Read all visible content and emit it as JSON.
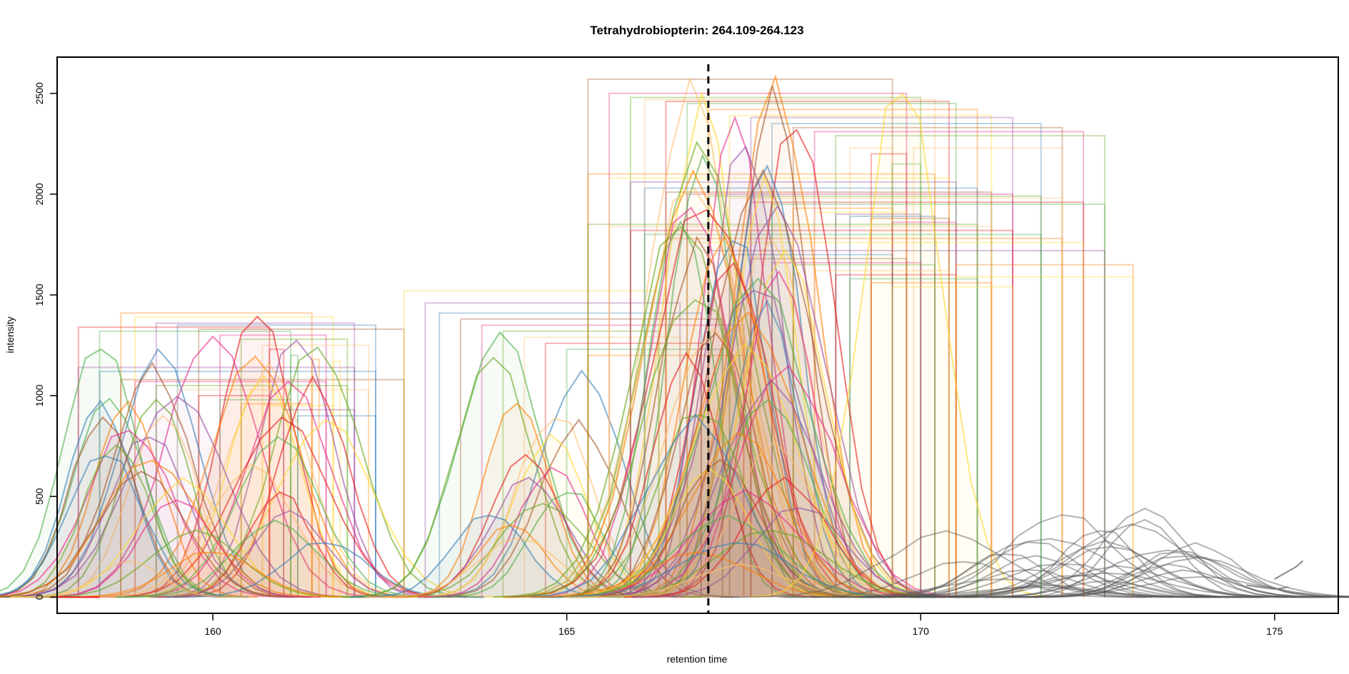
{
  "chart_data": {
    "type": "line",
    "title": "Tetrahydrobiopterin: 264.109-264.123",
    "xlabel": "retention time",
    "ylabel": "intensity",
    "xlim": [
      157.8,
      175.9
    ],
    "ylim": [
      -80,
      2680
    ],
    "x_ticks": [
      160,
      165,
      170,
      175
    ],
    "y_ticks": [
      0,
      500,
      1000,
      1500,
      2000,
      2500
    ],
    "grid": false,
    "legend": "none",
    "reference_line": {
      "x": 167.0,
      "style": "dashed",
      "color": "#000000"
    },
    "palette": [
      "#e41a1c",
      "#4daf4a",
      "#ff7f00",
      "#ffd92f",
      "#984ea3",
      "#377eb8",
      "#a65628",
      "#e7298a",
      "#66a61e",
      "#fdbf6f"
    ],
    "unassigned_color": "#555555",
    "peak_groups": [
      {
        "name": "early",
        "x_from": 158.4,
        "x_to": 161.8,
        "x_center": 160.4,
        "width": 0.85,
        "heights": [
          1410,
          1330,
          1300,
          1280,
          1240,
          1210,
          1200,
          1150,
          1120,
          1090,
          1060,
          1050,
          1030,
          1000,
          980,
          960,
          950,
          930,
          910,
          890,
          870,
          850,
          820,
          790,
          760,
          720,
          690,
          650,
          610,
          570,
          520,
          480,
          430,
          380,
          330,
          280,
          230,
          180
        ],
        "box_tops": [
          1340,
          1320,
          1410,
          1390,
          1360,
          1350,
          1330,
          1300,
          1280,
          1250,
          1230,
          1200,
          1180,
          1170,
          1140,
          1120,
          1080,
          1070,
          1050,
          1030,
          1000,
          980,
          960,
          950,
          930,
          900
        ],
        "box_starts": [
          158.1,
          158.4,
          158.7,
          158.9,
          159.2,
          159.5,
          159.8,
          160.1,
          160.4,
          160.7,
          161.0,
          161.2,
          161.5,
          161.8
        ],
        "box_ends": [
          160.8,
          161.1,
          161.4,
          161.7,
          162.0,
          162.3,
          162.7,
          161.6,
          161.9,
          162.2
        ]
      },
      {
        "name": "middle",
        "x_from": 163.9,
        "x_to": 165.3,
        "x_center": 164.5,
        "width": 0.75,
        "heights": [
          1300,
          1200,
          1110,
          1000,
          920,
          850,
          780,
          700,
          640,
          590,
          540,
          480,
          420,
          360,
          300
        ],
        "box_tops": [
          1520,
          1460,
          1410,
          1380,
          1350,
          1320,
          1290,
          1260,
          1230,
          1200
        ],
        "box_starts": [
          162.7,
          163.0,
          163.2,
          163.5,
          163.8,
          164.1,
          164.4,
          164.7,
          165.0,
          165.3
        ],
        "box_ends": [
          166.3,
          166.6,
          166.9,
          167.2,
          167.5
        ]
      },
      {
        "name": "main",
        "x_from": 166.6,
        "x_to": 168.3,
        "x_center": 167.5,
        "width": 0.9,
        "heights": [
          2500,
          2480,
          2450,
          2420,
          2380,
          2330,
          2300,
          2250,
          2210,
          2170,
          2130,
          2100,
          2060,
          2020,
          1990,
          1960,
          1930,
          1900,
          1870,
          1840,
          1810,
          1780,
          1740,
          1700,
          1660,
          1620,
          1580,
          1540,
          1500,
          1450,
          1400,
          1350,
          1300,
          1240,
          1180,
          1120,
          1060,
          1000,
          940,
          880,
          820,
          760,
          700,
          640,
          580,
          520,
          460,
          400,
          340,
          280,
          220,
          160
        ],
        "box_tops": [
          2570,
          2500,
          2480,
          2470,
          2460,
          2450,
          2420,
          2390,
          2380,
          2350,
          2330,
          2310,
          2290,
          2230,
          2200,
          2150,
          2100,
          2080,
          2060,
          2030,
          2010,
          2000,
          1990,
          1980,
          1960,
          1950,
          1930,
          1910,
          1900,
          1890,
          1880,
          1860,
          1850,
          1840,
          1820,
          1800,
          1780,
          1760,
          1720,
          1700,
          1680,
          1660,
          1650,
          1620,
          1600,
          1580,
          1560,
          1540
        ],
        "box_starts": [
          165.3,
          165.6,
          165.9,
          166.1,
          166.4,
          166.7,
          167.0,
          167.3,
          167.6,
          167.9,
          168.2,
          168.5,
          168.8,
          169.0,
          169.3,
          169.6
        ],
        "box_ends": [
          169.6,
          169.8,
          170.0,
          170.2,
          170.4,
          170.5,
          170.8,
          171.0,
          171.3,
          171.7,
          172.0,
          172.3,
          172.6
        ]
      },
      {
        "name": "late-tail",
        "x_from": 169.0,
        "x_to": 169.8,
        "x_center": 169.6,
        "width": 1.1,
        "heights": [
          2570
        ],
        "box_tops": [
          2230
        ],
        "box_starts": [
          169.9
        ],
        "box_ends": [
          172.0
        ]
      },
      {
        "name": "trailing-noise",
        "x_from": 170.2,
        "x_to": 174.0,
        "x_center": 172.2,
        "width": 1.0,
        "heights": [
          440,
          420,
          380,
          350,
          340,
          320,
          300,
          280,
          270,
          260,
          250,
          240,
          230,
          220,
          210,
          200,
          190,
          180,
          170,
          160,
          150,
          140,
          130,
          120,
          110,
          100,
          90,
          80,
          60,
          50
        ],
        "box_tops": [
          1650,
          1590
        ],
        "box_starts": [
          170.5
        ],
        "box_ends": [
          173.0,
          173.0
        ]
      }
    ],
    "isolated_traces": [
      {
        "x": [
          174.6,
          175.0,
          175.2
        ],
        "y": [
          60,
          40,
          50
        ]
      },
      {
        "x": [
          175.0,
          175.3,
          175.4
        ],
        "y": [
          90,
          150,
          180
        ]
      }
    ]
  }
}
